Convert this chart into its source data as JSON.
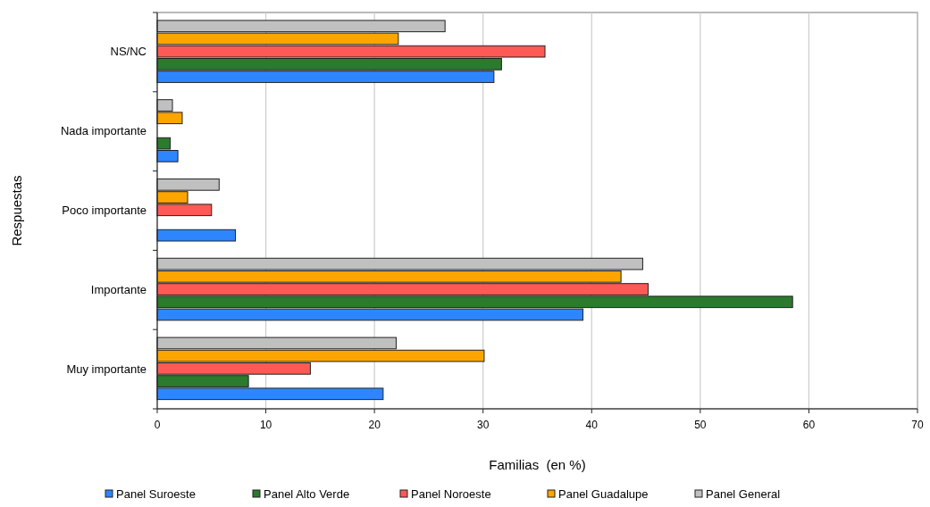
{
  "chart_data": {
    "type": "bar",
    "orientation": "horizontal",
    "xlabel": "Familias  (en %)",
    "ylabel": "Respuestas",
    "categories": [
      "NS/NC",
      "Nada importante",
      "Poco importante",
      "Importante",
      "Muy importante"
    ],
    "series": [
      {
        "name": "Panel Suroeste",
        "color": "#2e86fe",
        "values": [
          31.0,
          1.9,
          7.2,
          39.2,
          20.8
        ]
      },
      {
        "name": "Panel Alto Verde",
        "color": "#2b7a2e",
        "values": [
          31.7,
          1.2,
          null,
          58.5,
          8.4
        ]
      },
      {
        "name": "Panel Noroeste",
        "color": "#fe5a55",
        "values": [
          35.7,
          null,
          5.0,
          45.2,
          14.1
        ]
      },
      {
        "name": "Panel Guadalupe",
        "color": "#fca500",
        "values": [
          22.2,
          2.3,
          2.8,
          42.7,
          30.1
        ]
      },
      {
        "name": "Panel General",
        "color": "#c0c0c0",
        "values": [
          26.5,
          1.4,
          5.7,
          44.7,
          22.0
        ]
      }
    ],
    "xlim": [
      0,
      70
    ],
    "xticks": [
      0,
      10,
      20,
      30,
      40,
      50,
      60,
      70
    ],
    "grid": "x",
    "legend": "bottom"
  }
}
